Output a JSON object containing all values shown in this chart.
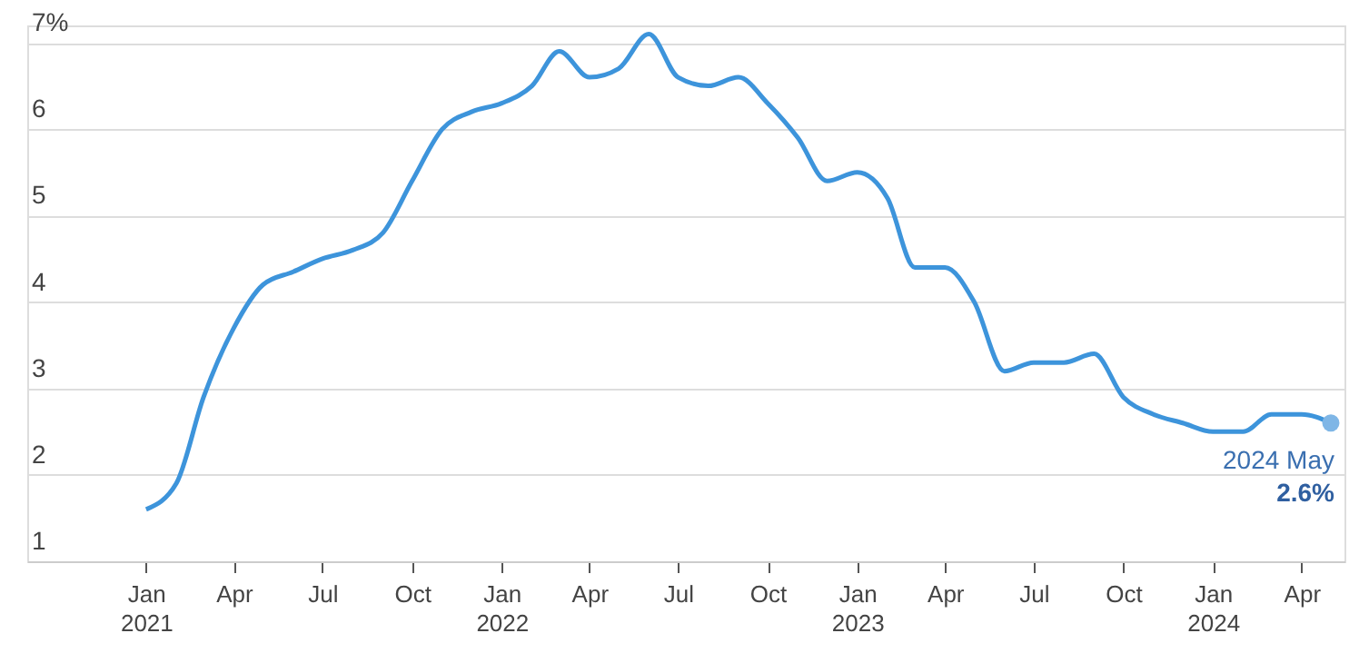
{
  "chart_data": {
    "type": "line",
    "x": [
      "2021-01",
      "2021-02",
      "2021-03",
      "2021-04",
      "2021-05",
      "2021-06",
      "2021-07",
      "2021-08",
      "2021-09",
      "2021-10",
      "2021-11",
      "2021-12",
      "2022-01",
      "2022-02",
      "2022-03",
      "2022-04",
      "2022-05",
      "2022-06",
      "2022-07",
      "2022-08",
      "2022-09",
      "2022-10",
      "2022-11",
      "2022-12",
      "2023-01",
      "2023-02",
      "2023-03",
      "2023-04",
      "2023-05",
      "2023-06",
      "2023-07",
      "2023-08",
      "2023-09",
      "2023-10",
      "2023-11",
      "2023-12",
      "2024-01",
      "2024-02",
      "2024-03",
      "2024-04",
      "2024-05"
    ],
    "series": [
      {
        "color": "#3d94db",
        "values": [
          1.6,
          1.9,
          2.9,
          3.7,
          4.2,
          4.35,
          4.5,
          4.6,
          4.8,
          5.4,
          6.0,
          6.2,
          6.3,
          6.5,
          6.9,
          6.6,
          6.7,
          7.1,
          6.6,
          6.5,
          6.6,
          6.3,
          5.9,
          5.4,
          5.5,
          5.2,
          4.4,
          4.4,
          4.0,
          3.2,
          3.3,
          3.3,
          3.4,
          2.9,
          2.7,
          2.6,
          2.5,
          2.5,
          2.7,
          2.7,
          2.6
        ]
      },
      {
        "type": "scatter",
        "marker": "circle",
        "color": "#7fb6e6",
        "x": [
          "2024-05"
        ],
        "values": [
          2.6
        ]
      }
    ],
    "xlim": [
      "2020-09-01",
      "2024-05-15"
    ],
    "xticks": [
      {
        "value": "2021-01",
        "label": "Jan\n2021"
      },
      {
        "value": "2021-04",
        "label": "Apr"
      },
      {
        "value": "2021-07",
        "label": "Jul"
      },
      {
        "value": "2021-10",
        "label": "Oct"
      },
      {
        "value": "2022-01",
        "label": "Jan\n2022"
      },
      {
        "value": "2022-04",
        "label": "Apr"
      },
      {
        "value": "2022-07",
        "label": "Jul"
      },
      {
        "value": "2022-10",
        "label": "Oct"
      },
      {
        "value": "2023-01",
        "label": "Jan\n2023"
      },
      {
        "value": "2023-04",
        "label": "Apr"
      },
      {
        "value": "2023-07",
        "label": "Jul"
      },
      {
        "value": "2023-10",
        "label": "Oct"
      },
      {
        "value": "2024-01",
        "label": "Jan\n2024"
      },
      {
        "value": "2024-04",
        "label": "Apr"
      }
    ],
    "ylim": [
      1,
      7.2
    ],
    "yticks": [
      1,
      2,
      3,
      4,
      5,
      6,
      {
        "value": 7,
        "label": "7%"
      }
    ],
    "grid": "y",
    "marker": "none",
    "line_style": "solid",
    "annotations": [
      {
        "text": "2024 May",
        "x": "2024-05",
        "y": 2.6
      },
      {
        "text": "2.6%",
        "x": "2024-05",
        "y": 2.6
      }
    ]
  }
}
